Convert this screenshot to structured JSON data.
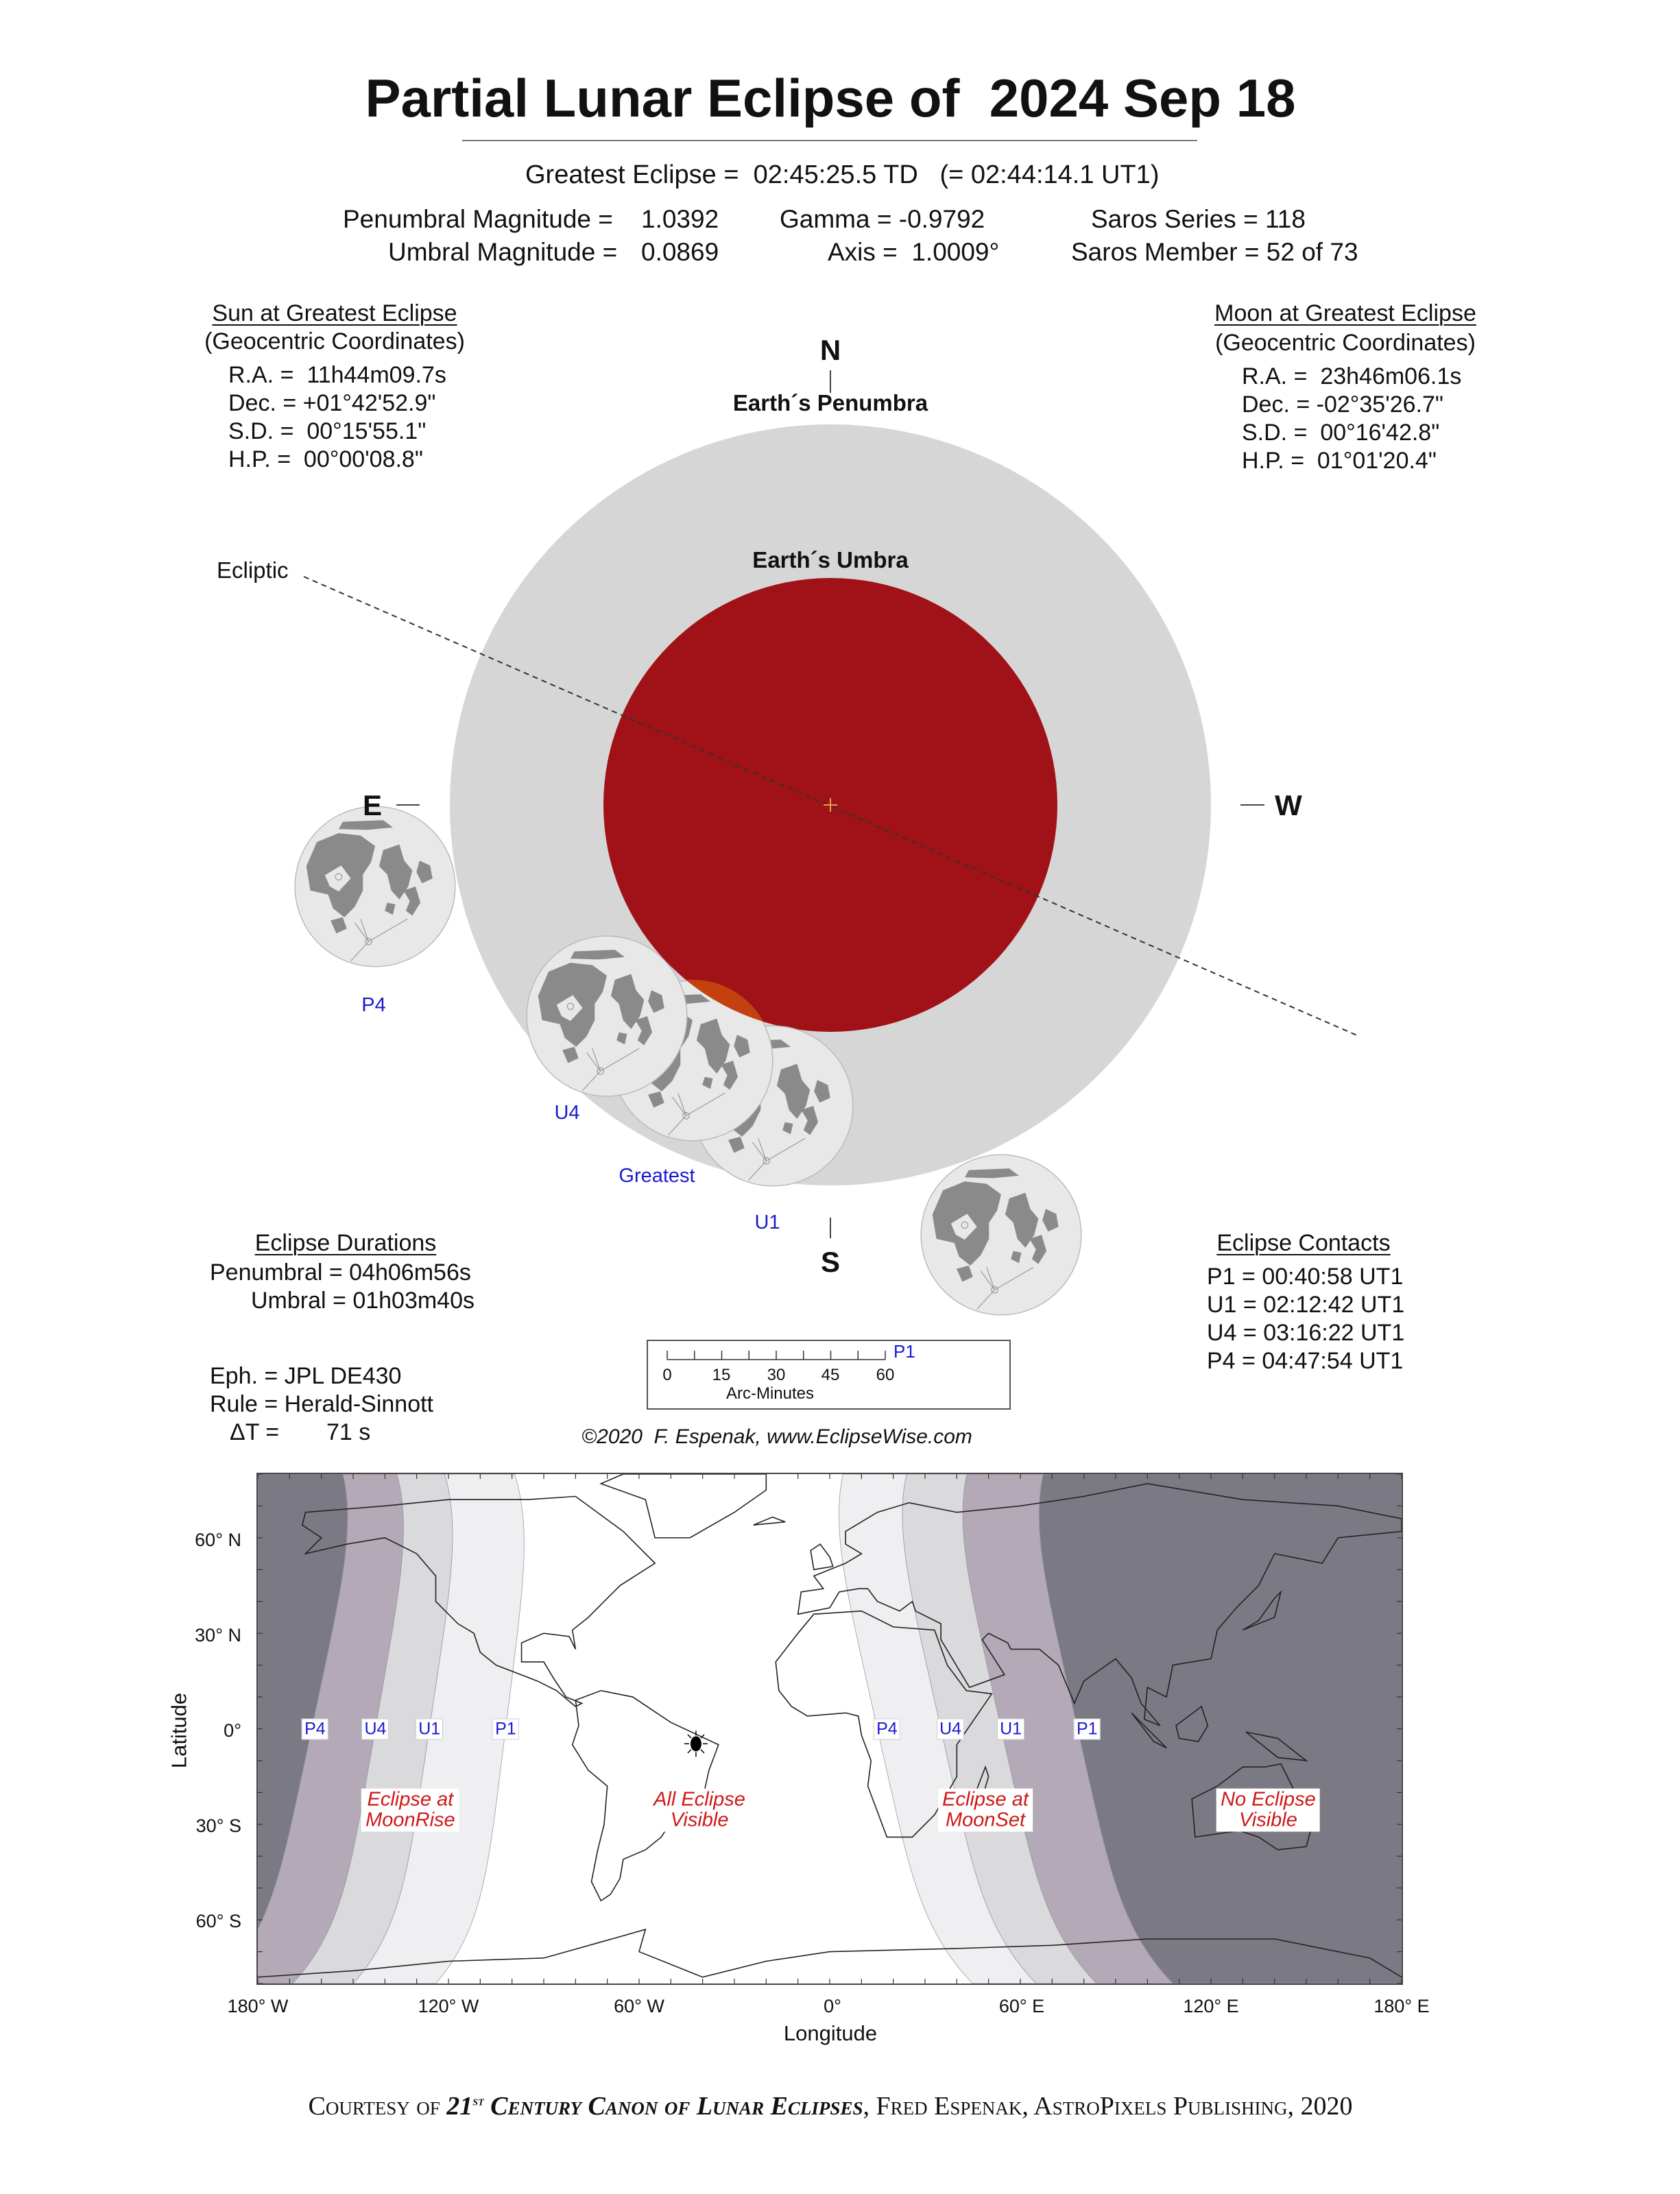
{
  "title": "Partial Lunar Eclipse of  2024 Sep 18",
  "greatest_eclipse": "Greatest Eclipse =  02:45:25.5 TD   (= 02:44:14.1 UT1)",
  "parameters": {
    "penumbral_magnitude_label": "Penumbral Magnitude =",
    "penumbral_magnitude": "1.0392",
    "umbral_magnitude_label": "Umbral Magnitude =",
    "umbral_magnitude": "0.0869",
    "gamma": "Gamma = -0.9792",
    "axis": "Axis =  1.0009°",
    "saros_series": "Saros Series = 118",
    "saros_member": "Saros Member = 52 of 73"
  },
  "sun": {
    "heading": "Sun at Greatest Eclipse",
    "subheading": "(Geocentric Coordinates)",
    "lines": [
      "R.A. =  11h44m09.7s",
      "Dec. = +01°42'52.9\"",
      "S.D. =  00°15'55.1\"",
      "H.P. =  00°00'08.8\""
    ]
  },
  "moon": {
    "heading": "Moon at Greatest Eclipse",
    "subheading": "(Geocentric Coordinates)",
    "lines": [
      "R.A. =  23h46m06.1s",
      "Dec. = -02°35'26.7\"",
      "S.D. =  00°16'42.8\"",
      "H.P. =  01°01'20.4\""
    ]
  },
  "diagram": {
    "north": "N",
    "south": "S",
    "east": "E",
    "west": "W",
    "penumbra_label": "Earth´s Penumbra",
    "umbra_label": "Earth´s Umbra",
    "ecliptic_label": "Ecliptic",
    "moon_labels": {
      "p4": "P4",
      "u4": "U4",
      "greatest": "Greatest",
      "u1": "U1"
    },
    "colors": {
      "penumbra": "#d6d6d6",
      "umbra": "#a01218",
      "umbral_overlap": "#c2410f",
      "moon": "#e8e8e8",
      "maria": "#8a8a8a",
      "label": "#1a1ad0"
    }
  },
  "durations": {
    "heading": "Eclipse Durations",
    "penumbral": "Penumbral = 04h06m56s",
    "umbral": "Umbral = 01h03m40s"
  },
  "contacts": {
    "heading": "Eclipse Contacts",
    "lines": [
      "P1 = 00:40:58 UT1",
      "U1 = 02:12:42 UT1",
      "U4 = 03:16:22 UT1",
      "P4 = 04:47:54 UT1"
    ]
  },
  "ephemeris": {
    "eph": "Eph. = JPL DE430",
    "rule": "Rule = Herald-Sinnott",
    "delta_t_label": "ΔT =",
    "delta_t_value": "71 s"
  },
  "scale": {
    "ticks": [
      "0",
      "15",
      "30",
      "45",
      "60"
    ],
    "label": "Arc-Minutes",
    "marker": "P1"
  },
  "copyright": "©2020  F. Espenak, www.EclipseWise.com",
  "map": {
    "lat_ticks": [
      "60° N",
      "30° N",
      "0°",
      "30° S",
      "60° S"
    ],
    "lon_ticks": [
      "180° W",
      "120° W",
      "60° W",
      "0°",
      "60° E",
      "120° E",
      "180° E"
    ],
    "xlabel": "Longitude",
    "ylabel": "Latitude",
    "west_contacts": [
      {
        "label": "P4",
        "lon": -163
      },
      {
        "label": "U4",
        "lon": -143
      },
      {
        "label": "U1",
        "lon": -126
      },
      {
        "label": "P1",
        "lon": -102
      }
    ],
    "east_contacts": [
      {
        "label": "P4",
        "lon": 15
      },
      {
        "label": "U4",
        "lon": 35
      },
      {
        "label": "U1",
        "lon": 54
      },
      {
        "label": "P1",
        "lon": 78
      }
    ],
    "regions": {
      "moonrise": "Eclipse at\nMoonRise",
      "all": "All Eclipse\nVisible",
      "moonset": "Eclipse at\nMoonSet",
      "none": "No Eclipse\nVisible"
    },
    "subpoint": {
      "lon": -42.1,
      "lat": -4.7
    },
    "colors": {
      "none": "#7b7a84",
      "penumbral": "#b4a9b6",
      "partial": "#dadadd",
      "light": "#efeff1",
      "all": "#ffffff",
      "label": "#d01818"
    }
  },
  "footer": {
    "pre": "Courtesy of ",
    "book_num": "21",
    "book_sup": "st",
    "book": " Century Canon of Lunar Eclipses",
    "post": ", Fred Espenak, AstroPixels Publishing, 2020"
  }
}
